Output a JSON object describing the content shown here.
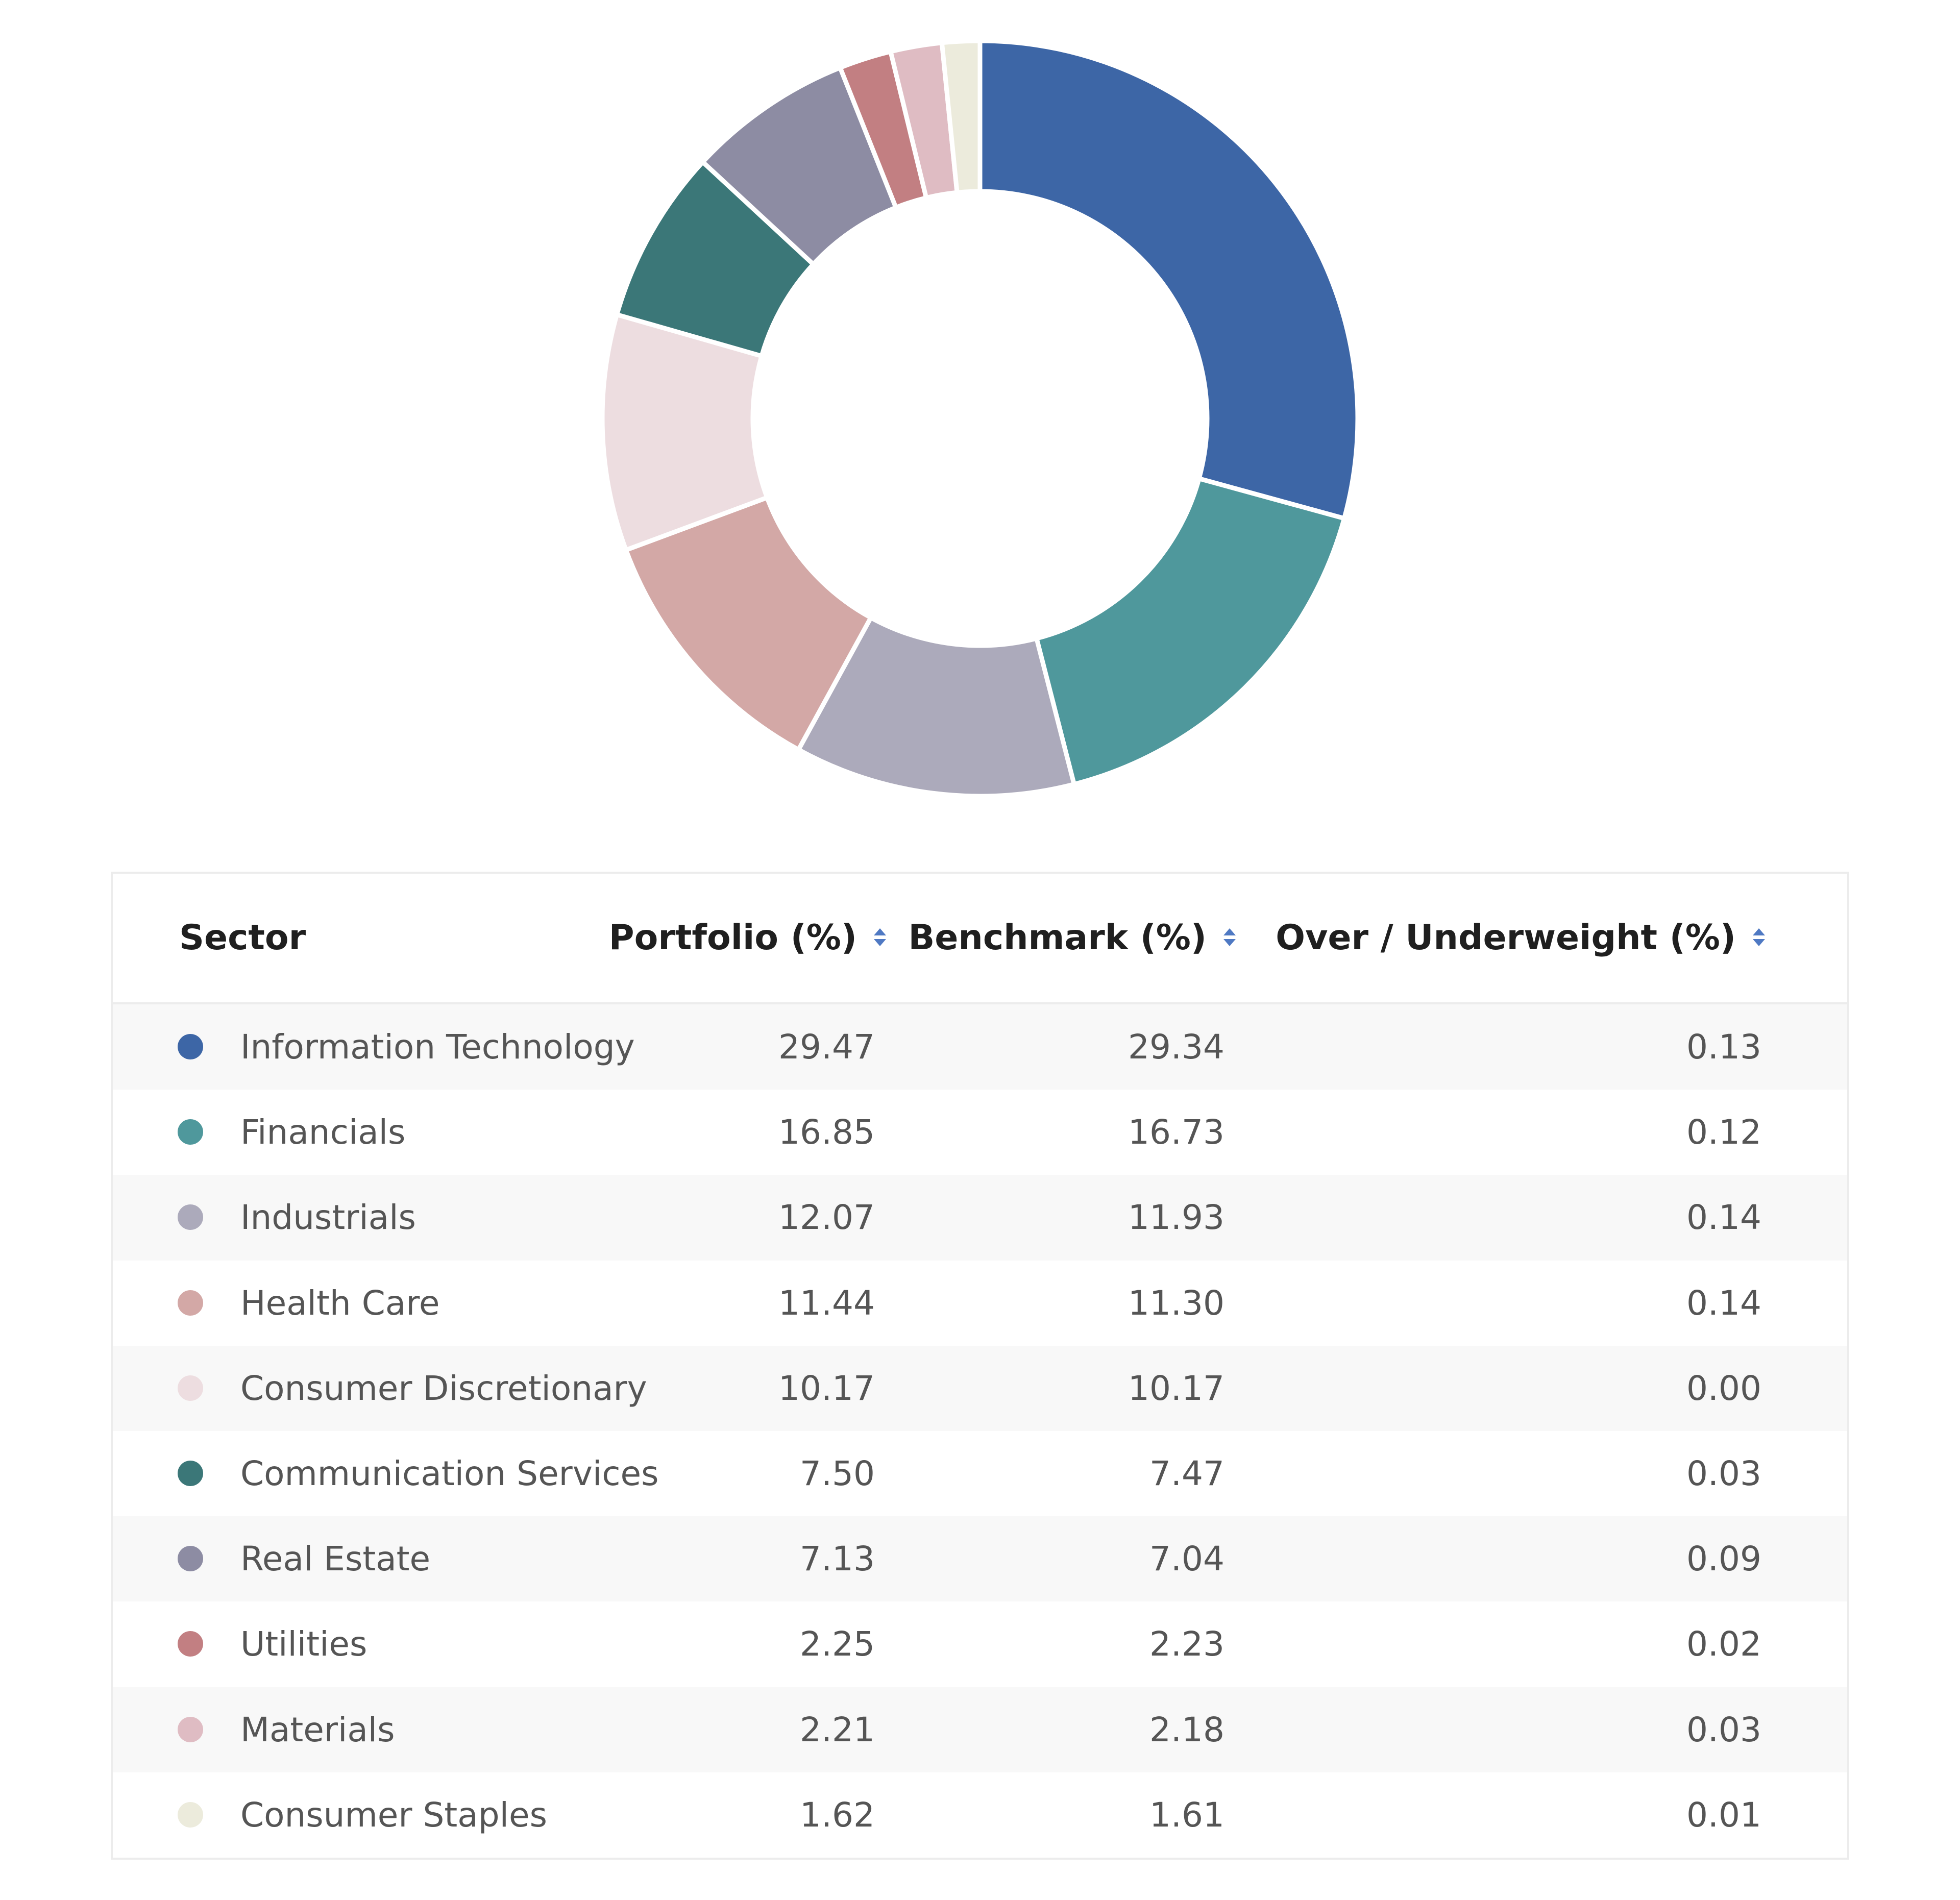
{
  "chart_data": {
    "type": "pie",
    "variant": "donut",
    "categories": [
      "Information Technology",
      "Financials",
      "Industrials",
      "Health Care",
      "Consumer Discretionary",
      "Communication Services",
      "Real Estate",
      "Utilities",
      "Materials",
      "Consumer Staples"
    ],
    "values": [
      29.47,
      16.85,
      12.07,
      11.44,
      10.17,
      7.5,
      7.13,
      2.25,
      2.21,
      1.62
    ],
    "colors": [
      "#3d66a6",
      "#4f989c",
      "#acaabb",
      "#d3a8a6",
      "#eddde0",
      "#3b7778",
      "#8d8ca3",
      "#c27f82",
      "#dfbcc3",
      "#ecebdc"
    ],
    "title": "",
    "legend": "table below chart"
  },
  "table": {
    "headers": {
      "sector": "Sector",
      "portfolio": "Portfolio (%)",
      "benchmark": "Benchmark (%)",
      "over": "Over / Underweight (%)"
    },
    "rows": [
      {
        "sector": "Information Technology",
        "portfolio": "29.47",
        "benchmark": "29.34",
        "over": "0.13",
        "color": "#3d66a6"
      },
      {
        "sector": "Financials",
        "portfolio": "16.85",
        "benchmark": "16.73",
        "over": "0.12",
        "color": "#4f989c"
      },
      {
        "sector": "Industrials",
        "portfolio": "12.07",
        "benchmark": "11.93",
        "over": "0.14",
        "color": "#acaabb"
      },
      {
        "sector": "Health Care",
        "portfolio": "11.44",
        "benchmark": "11.30",
        "over": "0.14",
        "color": "#d3a8a6"
      },
      {
        "sector": "Consumer Discretionary",
        "portfolio": "10.17",
        "benchmark": "10.17",
        "over": "0.00",
        "color": "#eddde0"
      },
      {
        "sector": "Communication Services",
        "portfolio": "7.50",
        "benchmark": "7.47",
        "over": "0.03",
        "color": "#3b7778"
      },
      {
        "sector": "Real Estate",
        "portfolio": "7.13",
        "benchmark": "7.04",
        "over": "0.09",
        "color": "#8d8ca3"
      },
      {
        "sector": "Utilities",
        "portfolio": "2.25",
        "benchmark": "2.23",
        "over": "0.02",
        "color": "#c27f82"
      },
      {
        "sector": "Materials",
        "portfolio": "2.21",
        "benchmark": "2.18",
        "over": "0.03",
        "color": "#dfbcc3"
      },
      {
        "sector": "Consumer Staples",
        "portfolio": "1.62",
        "benchmark": "1.61",
        "over": "0.01",
        "color": "#ecebdc"
      }
    ]
  }
}
